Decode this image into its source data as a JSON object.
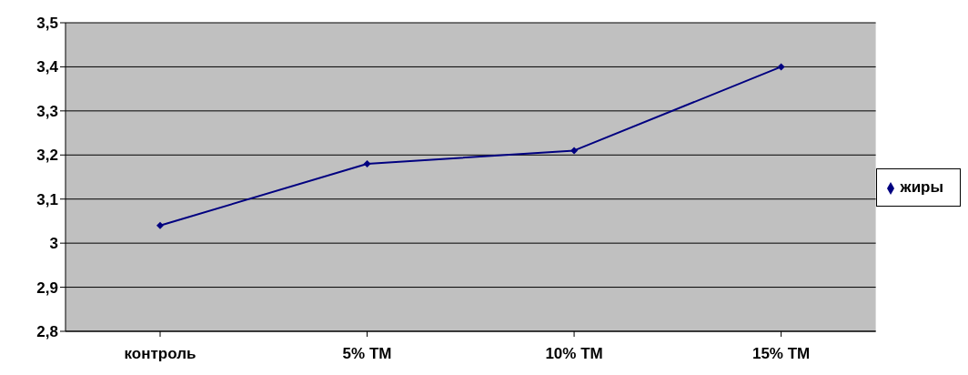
{
  "chart_data": {
    "type": "line",
    "categories": [
      "контроль",
      "5% ТМ",
      "10% ТМ",
      "15% ТМ"
    ],
    "series": [
      {
        "name": "жиры",
        "color": "#000080",
        "values": [
          3.04,
          3.18,
          3.21,
          3.4
        ]
      }
    ],
    "ylim": [
      2.8,
      3.5
    ],
    "yticks": [
      {
        "value": 2.8,
        "label": "2,8"
      },
      {
        "value": 2.9,
        "label": "2,9"
      },
      {
        "value": 3,
        "label": "3"
      },
      {
        "value": 3.1,
        "label": "3,1"
      },
      {
        "value": 3.2,
        "label": "3,2"
      },
      {
        "value": 3.3,
        "label": "3,3"
      },
      {
        "value": 3.4,
        "label": "3,4"
      },
      {
        "value": 3.5,
        "label": "3,5"
      }
    ],
    "grid": "y",
    "legend": "right",
    "marker": "diamond",
    "line_style": "solid"
  }
}
